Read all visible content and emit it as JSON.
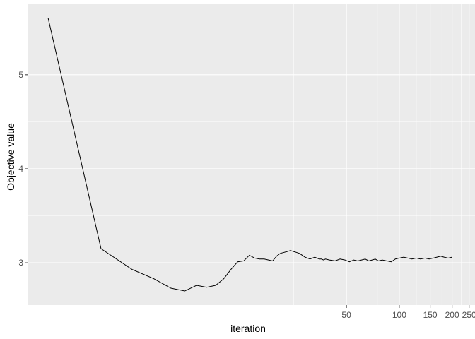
{
  "chart_data": {
    "type": "line",
    "title": "",
    "xlabel": "iteration",
    "ylabel": "Objective value",
    "x_scale": "log",
    "xlim": [
      0.77,
      270
    ],
    "ylim": [
      2.55,
      5.75
    ],
    "x_ticks": [
      {
        "value": 50,
        "label": "50"
      },
      {
        "value": 100,
        "label": "100"
      },
      {
        "value": 150,
        "label": "150"
      },
      {
        "value": 200,
        "label": "200"
      },
      {
        "value": 250,
        "label": "250"
      }
    ],
    "y_ticks": [
      {
        "value": 3,
        "label": "3"
      },
      {
        "value": 4,
        "label": "4"
      },
      {
        "value": 5,
        "label": "5"
      }
    ],
    "minor_x": [
      25,
      75,
      125,
      175,
      225
    ],
    "minor_y": [
      2.5,
      3.5,
      4.5,
      5.5
    ],
    "grid": true,
    "panel_color": "#ebebeb",
    "grid_color": "#ffffff",
    "line_color": "#000000",
    "series": [
      {
        "x": [
          1,
          2,
          3,
          4,
          5,
          6,
          7,
          8,
          9,
          10,
          11,
          12,
          13,
          14,
          15,
          16,
          17,
          18,
          19,
          20,
          21,
          22,
          23,
          24,
          25,
          26,
          27,
          28,
          29,
          30,
          31,
          32,
          33,
          34,
          35,
          36,
          37,
          38,
          40,
          43,
          46,
          49,
          52,
          55,
          58,
          61,
          64,
          67,
          70,
          73,
          76,
          80,
          85,
          90,
          95,
          100,
          106,
          112,
          118,
          125,
          132,
          140,
          148,
          156,
          164,
          172,
          180,
          190,
          200
        ],
        "values": [
          5.6,
          3.15,
          2.93,
          2.83,
          2.73,
          2.7,
          2.76,
          2.74,
          2.76,
          2.83,
          2.93,
          3.01,
          3.02,
          3.08,
          3.05,
          3.04,
          3.04,
          3.03,
          3.02,
          3.07,
          3.1,
          3.11,
          3.12,
          3.13,
          3.12,
          3.11,
          3.1,
          3.08,
          3.06,
          3.05,
          3.04,
          3.05,
          3.06,
          3.05,
          3.04,
          3.04,
          3.03,
          3.04,
          3.03,
          3.02,
          3.04,
          3.03,
          3.01,
          3.03,
          3.02,
          3.03,
          3.04,
          3.02,
          3.03,
          3.04,
          3.02,
          3.03,
          3.02,
          3.01,
          3.04,
          3.05,
          3.06,
          3.05,
          3.04,
          3.05,
          3.04,
          3.05,
          3.04,
          3.05,
          3.06,
          3.07,
          3.06,
          3.05,
          3.06
        ]
      }
    ]
  }
}
